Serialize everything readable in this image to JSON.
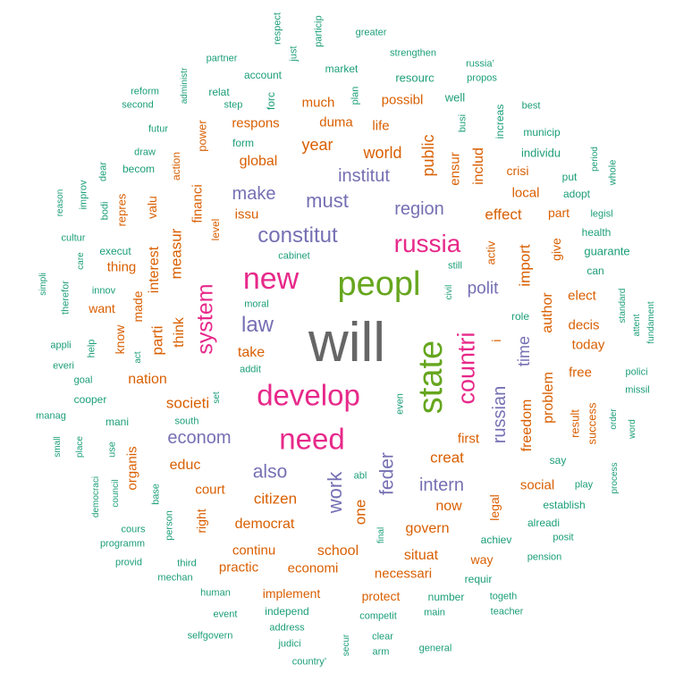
{
  "palette": {
    "t1": "#1b9e77",
    "t2": "#d95f02",
    "t3": "#7570b3",
    "t4": "#e7298a",
    "t5": "#66a61e",
    "t6": "#666666"
  },
  "words": [
    {
      "text": "will",
      "tier": "t6",
      "vertical": false
    },
    {
      "text": "peopl",
      "tier": "t5",
      "vertical": false
    },
    {
      "text": "state",
      "tier": "t5",
      "vertical": true
    },
    {
      "text": "new",
      "tier": "t4",
      "vertical": false
    },
    {
      "text": "develop",
      "tier": "t4",
      "vertical": false
    },
    {
      "text": "need",
      "tier": "t4",
      "vertical": false
    },
    {
      "text": "russia",
      "tier": "t4",
      "vertical": false
    },
    {
      "text": "countri",
      "tier": "t4",
      "vertical": true
    },
    {
      "text": "system",
      "tier": "t4",
      "vertical": true
    },
    {
      "text": "constitut",
      "tier": "t3",
      "vertical": false
    },
    {
      "text": "law",
      "tier": "t3",
      "vertical": false
    },
    {
      "text": "must",
      "tier": "t3",
      "vertical": false
    },
    {
      "text": "make",
      "tier": "t3",
      "vertical": false
    },
    {
      "text": "region",
      "tier": "t3",
      "vertical": false
    },
    {
      "text": "institut",
      "tier": "t3",
      "vertical": false
    },
    {
      "text": "polit",
      "tier": "t3",
      "vertical": false
    },
    {
      "text": "also",
      "tier": "t3",
      "vertical": false
    },
    {
      "text": "econom",
      "tier": "t3",
      "vertical": false
    },
    {
      "text": "intern",
      "tier": "t3",
      "vertical": false
    },
    {
      "text": "feder",
      "tier": "t3",
      "vertical": true
    },
    {
      "text": "work",
      "tier": "t3",
      "vertical": true
    },
    {
      "text": "russian",
      "tier": "t3",
      "vertical": true
    },
    {
      "text": "time",
      "tier": "t3",
      "vertical": true
    },
    {
      "text": "year",
      "tier": "t2",
      "vertical": false
    },
    {
      "text": "world",
      "tier": "t2",
      "vertical": false
    },
    {
      "text": "global",
      "tier": "t2",
      "vertical": false
    },
    {
      "text": "much",
      "tier": "t2",
      "vertical": false
    },
    {
      "text": "duma",
      "tier": "t2",
      "vertical": false
    },
    {
      "text": "possibl",
      "tier": "t2",
      "vertical": false
    },
    {
      "text": "respons",
      "tier": "t2",
      "vertical": false
    },
    {
      "text": "life",
      "tier": "t2",
      "vertical": false
    },
    {
      "text": "issu",
      "tier": "t2",
      "vertical": false
    },
    {
      "text": "effect",
      "tier": "t2",
      "vertical": false
    },
    {
      "text": "local",
      "tier": "t2",
      "vertical": false
    },
    {
      "text": "part",
      "tier": "t2",
      "vertical": false
    },
    {
      "text": "take",
      "tier": "t2",
      "vertical": false
    },
    {
      "text": "nation",
      "tier": "t2",
      "vertical": false
    },
    {
      "text": "societi",
      "tier": "t2",
      "vertical": false
    },
    {
      "text": "educ",
      "tier": "t2",
      "vertical": false
    },
    {
      "text": "court",
      "tier": "t2",
      "vertical": false
    },
    {
      "text": "citizen",
      "tier": "t2",
      "vertical": false
    },
    {
      "text": "democrat",
      "tier": "t2",
      "vertical": false
    },
    {
      "text": "continu",
      "tier": "t2",
      "vertical": false
    },
    {
      "text": "practic",
      "tier": "t2",
      "vertical": false
    },
    {
      "text": "economi",
      "tier": "t2",
      "vertical": false
    },
    {
      "text": "school",
      "tier": "t2",
      "vertical": false
    },
    {
      "text": "necessari",
      "tier": "t2",
      "vertical": false
    },
    {
      "text": "situat",
      "tier": "t2",
      "vertical": false
    },
    {
      "text": "govern",
      "tier": "t2",
      "vertical": false
    },
    {
      "text": "creat",
      "tier": "t2",
      "vertical": false
    },
    {
      "text": "now",
      "tier": "t2",
      "vertical": false
    },
    {
      "text": "first",
      "tier": "t2",
      "vertical": false
    },
    {
      "text": "social",
      "tier": "t2",
      "vertical": false
    },
    {
      "text": "way",
      "tier": "t2",
      "vertical": false
    },
    {
      "text": "elect",
      "tier": "t2",
      "vertical": false
    },
    {
      "text": "decis",
      "tier": "t2",
      "vertical": false
    },
    {
      "text": "today",
      "tier": "t2",
      "vertical": false
    },
    {
      "text": "free",
      "tier": "t2",
      "vertical": false
    },
    {
      "text": "implement",
      "tier": "t2",
      "vertical": false
    },
    {
      "text": "protect",
      "tier": "t2",
      "vertical": false
    },
    {
      "text": "thing",
      "tier": "t2",
      "vertical": false
    },
    {
      "text": "want",
      "tier": "t2",
      "vertical": false
    },
    {
      "text": "public",
      "tier": "t2",
      "vertical": true
    },
    {
      "text": "includ",
      "tier": "t2",
      "vertical": true
    },
    {
      "text": "ensur",
      "tier": "t2",
      "vertical": true
    },
    {
      "text": "financi",
      "tier": "t2",
      "vertical": true
    },
    {
      "text": "measur",
      "tier": "t2",
      "vertical": true
    },
    {
      "text": "interest",
      "tier": "t2",
      "vertical": true
    },
    {
      "text": "parti",
      "tier": "t2",
      "vertical": true
    },
    {
      "text": "think",
      "tier": "t2",
      "vertical": true
    },
    {
      "text": "import",
      "tier": "t2",
      "vertical": true
    },
    {
      "text": "author",
      "tier": "t2",
      "vertical": true
    },
    {
      "text": "problem",
      "tier": "t2",
      "vertical": true
    },
    {
      "text": "freedom",
      "tier": "t2",
      "vertical": true
    },
    {
      "text": "one",
      "tier": "t2",
      "vertical": true
    },
    {
      "text": "legal",
      "tier": "t2",
      "vertical": true
    },
    {
      "text": "right",
      "tier": "t2",
      "vertical": true
    },
    {
      "text": "organis",
      "tier": "t2",
      "vertical": true
    },
    {
      "text": "made",
      "tier": "t2",
      "vertical": true
    },
    {
      "text": "know",
      "tier": "t2",
      "vertical": true
    },
    {
      "text": "valu",
      "tier": "t2",
      "vertical": true
    },
    {
      "text": "repres",
      "tier": "t2",
      "vertical": true
    },
    {
      "text": "power",
      "tier": "t2",
      "vertical": true
    },
    {
      "text": "action",
      "tier": "t2",
      "vertical": true
    },
    {
      "text": "crisi",
      "tier": "t2",
      "vertical": false
    },
    {
      "text": "give",
      "tier": "t2",
      "vertical": true
    },
    {
      "text": "activ",
      "tier": "t2",
      "vertical": true
    },
    {
      "text": "result",
      "tier": "t2",
      "vertical": true
    },
    {
      "text": "success",
      "tier": "t2",
      "vertical": true
    },
    {
      "text": "level",
      "tier": "t2",
      "vertical": true
    },
    {
      "text": "i",
      "tier": "t2",
      "vertical": true
    },
    {
      "text": "respect",
      "tier": "t1",
      "vertical": true
    },
    {
      "text": "particip",
      "tier": "t1",
      "vertical": true
    },
    {
      "text": "greater",
      "tier": "t1",
      "vertical": false
    },
    {
      "text": "strengthen",
      "tier": "t1",
      "vertical": false
    },
    {
      "text": "partner",
      "tier": "t1",
      "vertical": false
    },
    {
      "text": "just",
      "tier": "t1",
      "vertical": true
    },
    {
      "text": "account",
      "tier": "t1",
      "vertical": false
    },
    {
      "text": "market",
      "tier": "t1",
      "vertical": false
    },
    {
      "text": "resourc",
      "tier": "t1",
      "vertical": false
    },
    {
      "text": "russia’",
      "tier": "t1",
      "vertical": false
    },
    {
      "text": "propos",
      "tier": "t1",
      "vertical": false
    },
    {
      "text": "administr",
      "tier": "t1",
      "vertical": true
    },
    {
      "text": "reform",
      "tier": "t1",
      "vertical": false
    },
    {
      "text": "second",
      "tier": "t1",
      "vertical": false
    },
    {
      "text": "relat",
      "tier": "t1",
      "vertical": false
    },
    {
      "text": "step",
      "tier": "t1",
      "vertical": false
    },
    {
      "text": "forc",
      "tier": "t1",
      "vertical": true
    },
    {
      "text": "plan",
      "tier": "t1",
      "vertical": true
    },
    {
      "text": "well",
      "tier": "t1",
      "vertical": false
    },
    {
      "text": "busi",
      "tier": "t1",
      "vertical": true
    },
    {
      "text": "increas",
      "tier": "t1",
      "vertical": true
    },
    {
      "text": "best",
      "tier": "t1",
      "vertical": false
    },
    {
      "text": "futur",
      "tier": "t1",
      "vertical": false
    },
    {
      "text": "form",
      "tier": "t1",
      "vertical": false
    },
    {
      "text": "municip",
      "tier": "t1",
      "vertical": false
    },
    {
      "text": "draw",
      "tier": "t1",
      "vertical": false
    },
    {
      "text": "individu",
      "tier": "t1",
      "vertical": false
    },
    {
      "text": "becom",
      "tier": "t1",
      "vertical": false
    },
    {
      "text": "dear",
      "tier": "t1",
      "vertical": true
    },
    {
      "text": "put",
      "tier": "t1",
      "vertical": false
    },
    {
      "text": "period",
      "tier": "t1",
      "vertical": true
    },
    {
      "text": "whole",
      "tier": "t1",
      "vertical": true
    },
    {
      "text": "adopt",
      "tier": "t1",
      "vertical": false
    },
    {
      "text": "reason",
      "tier": "t1",
      "vertical": true
    },
    {
      "text": "improv",
      "tier": "t1",
      "vertical": true
    },
    {
      "text": "bodi",
      "tier": "t1",
      "vertical": true
    },
    {
      "text": "legisl",
      "tier": "t1",
      "vertical": false
    },
    {
      "text": "cultur",
      "tier": "t1",
      "vertical": false
    },
    {
      "text": "health",
      "tier": "t1",
      "vertical": false
    },
    {
      "text": "execut",
      "tier": "t1",
      "vertical": false
    },
    {
      "text": "guarante",
      "tier": "t1",
      "vertical": false
    },
    {
      "text": "cabinet",
      "tier": "t1",
      "vertical": false
    },
    {
      "text": "care",
      "tier": "t1",
      "vertical": true
    },
    {
      "text": "still",
      "tier": "t1",
      "vertical": false
    },
    {
      "text": "can",
      "tier": "t1",
      "vertical": false
    },
    {
      "text": "simpli",
      "tier": "t1",
      "vertical": true
    },
    {
      "text": "therefor",
      "tier": "t1",
      "vertical": true
    },
    {
      "text": "innov",
      "tier": "t1",
      "vertical": false
    },
    {
      "text": "moral",
      "tier": "t1",
      "vertical": false
    },
    {
      "text": "civil",
      "tier": "t1",
      "vertical": true
    },
    {
      "text": "standard",
      "tier": "t1",
      "vertical": true
    },
    {
      "text": "attent",
      "tier": "t1",
      "vertical": true
    },
    {
      "text": "fundament",
      "tier": "t1",
      "vertical": true
    },
    {
      "text": "role",
      "tier": "t1",
      "vertical": false
    },
    {
      "text": "appli",
      "tier": "t1",
      "vertical": false
    },
    {
      "text": "help",
      "tier": "t1",
      "vertical": true
    },
    {
      "text": "act",
      "tier": "t1",
      "vertical": true
    },
    {
      "text": "addit",
      "tier": "t1",
      "vertical": false
    },
    {
      "text": "everi",
      "tier": "t1",
      "vertical": false
    },
    {
      "text": "goal",
      "tier": "t1",
      "vertical": false
    },
    {
      "text": "polici",
      "tier": "t1",
      "vertical": false
    },
    {
      "text": "missil",
      "tier": "t1",
      "vertical": false
    },
    {
      "text": "cooper",
      "tier": "t1",
      "vertical": false
    },
    {
      "text": "set",
      "tier": "t1",
      "vertical": true
    },
    {
      "text": "manag",
      "tier": "t1",
      "vertical": false
    },
    {
      "text": "mani",
      "tier": "t1",
      "vertical": false
    },
    {
      "text": "even",
      "tier": "t1",
      "vertical": true
    },
    {
      "text": "south",
      "tier": "t1",
      "vertical": false
    },
    {
      "text": "order",
      "tier": "t1",
      "vertical": true
    },
    {
      "text": "word",
      "tier": "t1",
      "vertical": true
    },
    {
      "text": "small",
      "tier": "t1",
      "vertical": true
    },
    {
      "text": "place",
      "tier": "t1",
      "vertical": true
    },
    {
      "text": "use",
      "tier": "t1",
      "vertical": true
    },
    {
      "text": "say",
      "tier": "t1",
      "vertical": false
    },
    {
      "text": "abl",
      "tier": "t1",
      "vertical": false
    },
    {
      "text": "play",
      "tier": "t1",
      "vertical": false
    },
    {
      "text": "process",
      "tier": "t1",
      "vertical": true
    },
    {
      "text": "democraci",
      "tier": "t1",
      "vertical": true
    },
    {
      "text": "council",
      "tier": "t1",
      "vertical": true
    },
    {
      "text": "base",
      "tier": "t1",
      "vertical": true
    },
    {
      "text": "establish",
      "tier": "t1",
      "vertical": false
    },
    {
      "text": "alreadi",
      "tier": "t1",
      "vertical": false
    },
    {
      "text": "person",
      "tier": "t1",
      "vertical": true
    },
    {
      "text": "cours",
      "tier": "t1",
      "vertical": false
    },
    {
      "text": "programm",
      "tier": "t1",
      "vertical": false
    },
    {
      "text": "achiev",
      "tier": "t1",
      "vertical": false
    },
    {
      "text": "posit",
      "tier": "t1",
      "vertical": false
    },
    {
      "text": "final",
      "tier": "t1",
      "vertical": true
    },
    {
      "text": "provid",
      "tier": "t1",
      "vertical": false
    },
    {
      "text": "third",
      "tier": "t1",
      "vertical": false
    },
    {
      "text": "requir",
      "tier": "t1",
      "vertical": false
    },
    {
      "text": "pension",
      "tier": "t1",
      "vertical": false
    },
    {
      "text": "mechan",
      "tier": "t1",
      "vertical": false
    },
    {
      "text": "human",
      "tier": "t1",
      "vertical": false
    },
    {
      "text": "number",
      "tier": "t1",
      "vertical": false
    },
    {
      "text": "togeth",
      "tier": "t1",
      "vertical": false
    },
    {
      "text": "event",
      "tier": "t1",
      "vertical": false
    },
    {
      "text": "independ",
      "tier": "t1",
      "vertical": false
    },
    {
      "text": "competit",
      "tier": "t1",
      "vertical": false
    },
    {
      "text": "main",
      "tier": "t1",
      "vertical": false
    },
    {
      "text": "teacher",
      "tier": "t1",
      "vertical": false
    },
    {
      "text": "address",
      "tier": "t1",
      "vertical": false
    },
    {
      "text": "selfgovern",
      "tier": "t1",
      "vertical": false
    },
    {
      "text": "secur",
      "tier": "t1",
      "vertical": true
    },
    {
      "text": "clear",
      "tier": "t1",
      "vertical": false
    },
    {
      "text": "judici",
      "tier": "t1",
      "vertical": false
    },
    {
      "text": "arm",
      "tier": "t1",
      "vertical": false
    },
    {
      "text": "general",
      "tier": "t1",
      "vertical": false
    },
    {
      "text": "country’",
      "tier": "t1",
      "vertical": false
    }
  ]
}
